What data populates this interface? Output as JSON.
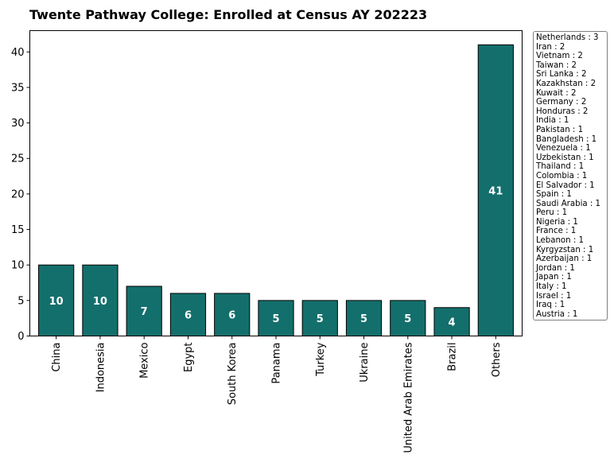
{
  "chart_data": {
    "type": "bar",
    "title": "Twente Pathway College: Enrolled at Census AY 202223",
    "xlabel": "",
    "ylabel": "",
    "categories": [
      "China",
      "Indonesia",
      "Mexico",
      "Egypt",
      "South Korea",
      "Panama",
      "Turkey",
      "Ukraine",
      "United Arab Emirates",
      "Brazil",
      "Others"
    ],
    "values": [
      10,
      10,
      7,
      6,
      6,
      5,
      5,
      5,
      5,
      4,
      41
    ],
    "ylim": [
      0,
      43
    ],
    "yticks": [
      0,
      5,
      10,
      15,
      20,
      25,
      30,
      35,
      40
    ],
    "bar_color": "#136f6c",
    "bar_edge_color": "#000000",
    "bar_label_color": "#ffffff",
    "grid": false,
    "others_breakdown": [
      "Netherlands : 3",
      "Iran : 2",
      "Vietnam : 2",
      "Taiwan : 2",
      "Sri Lanka : 2",
      "Kazakhstan : 2",
      "Kuwait : 2",
      "Germany : 2",
      "Honduras : 2",
      "India : 1",
      "Pakistan : 1",
      "Bangladesh : 1",
      "Venezuela : 1",
      "Uzbekistan : 1",
      "Thailand : 1",
      "Colombia : 1",
      "El Salvador : 1",
      "Spain : 1",
      "Saudi Arabia : 1",
      "Peru : 1",
      "Nigeria : 1",
      "France : 1",
      "Lebanon : 1",
      "Kyrgyzstan : 1",
      "Azerbaijan : 1",
      "Jordan : 1",
      "Japan : 1",
      "Italy : 1",
      "Israel : 1",
      "Iraq : 1",
      "Austria : 1"
    ],
    "others_breakdown_position": "right"
  }
}
